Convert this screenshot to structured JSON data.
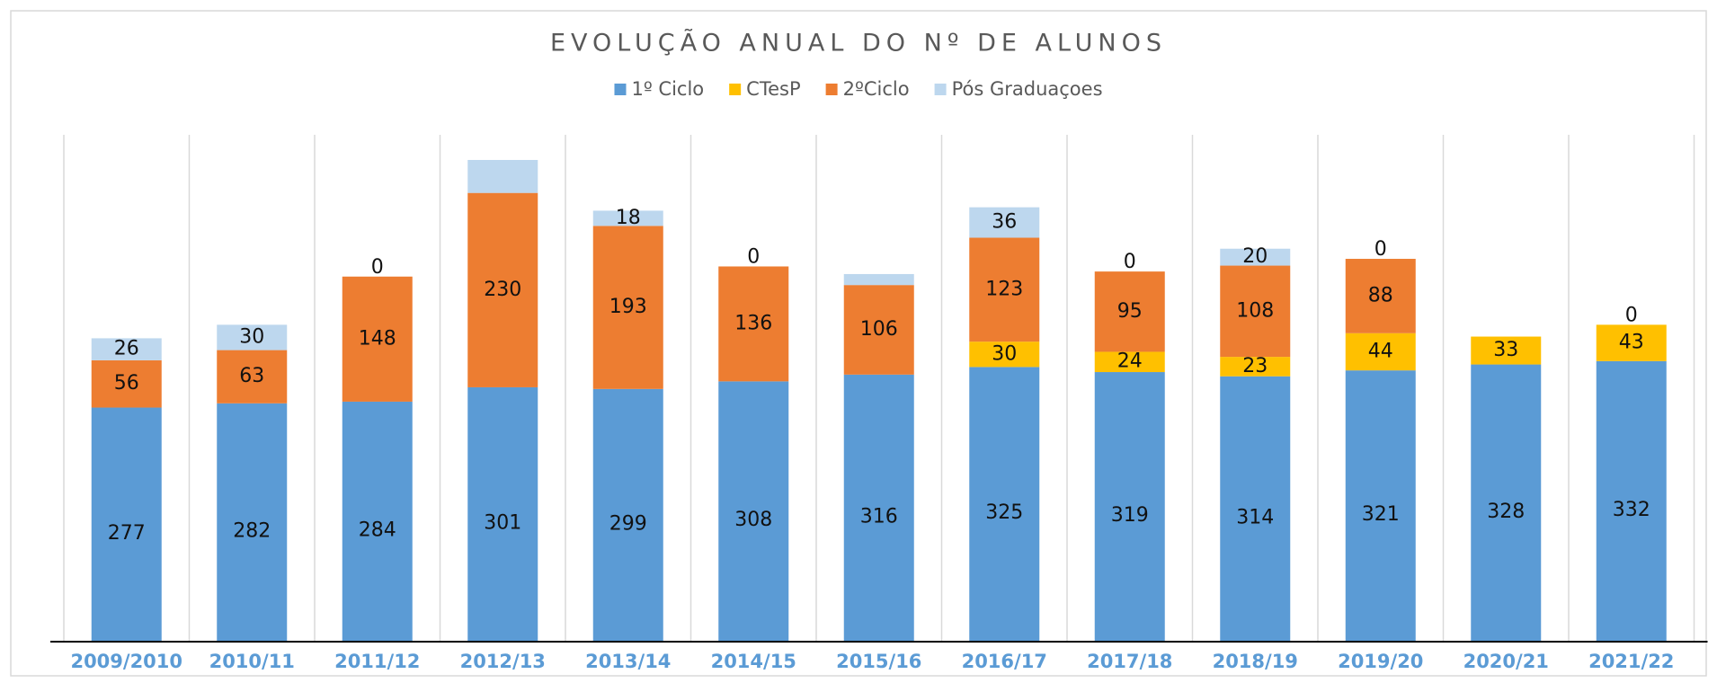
{
  "chart_data": {
    "type": "stacked_bar",
    "title": "EVOLUÇÃO ANUAL DO Nº DE ALUNOS",
    "categories": [
      "2009/2010",
      "2010/11",
      "2011/12",
      "2012/13",
      "2013/14",
      "2014/15",
      "2015/16",
      "2016/17",
      "2017/18",
      "2018/19",
      "2019/20",
      "2020/21",
      "2021/22"
    ],
    "series": [
      {
        "name": "1º Ciclo",
        "color": "#5b9bd5",
        "values": [
          277,
          282,
          284,
          301,
          299,
          308,
          316,
          325,
          319,
          314,
          321,
          328,
          332
        ]
      },
      {
        "name": "CTesP",
        "color": "#ffc000",
        "values": [
          null,
          null,
          null,
          null,
          null,
          null,
          null,
          30,
          24,
          23,
          44,
          33,
          43
        ]
      },
      {
        "name": "2ºCiclo",
        "color": "#ed7d31",
        "values": [
          56,
          63,
          148,
          230,
          193,
          136,
          106,
          123,
          95,
          108,
          88,
          null,
          null
        ]
      },
      {
        "name": "Pós Graduaçoes",
        "color": "#bdd7ee",
        "values": [
          26,
          30,
          0,
          39,
          18,
          0,
          13,
          36,
          0,
          20,
          0,
          null,
          0
        ],
        "value_labels": [
          "26",
          "30",
          "0",
          null,
          "18",
          "0",
          null,
          "36",
          "0",
          "20",
          "0",
          null,
          "0"
        ]
      }
    ],
    "legend": "top",
    "grid": "vertical"
  }
}
